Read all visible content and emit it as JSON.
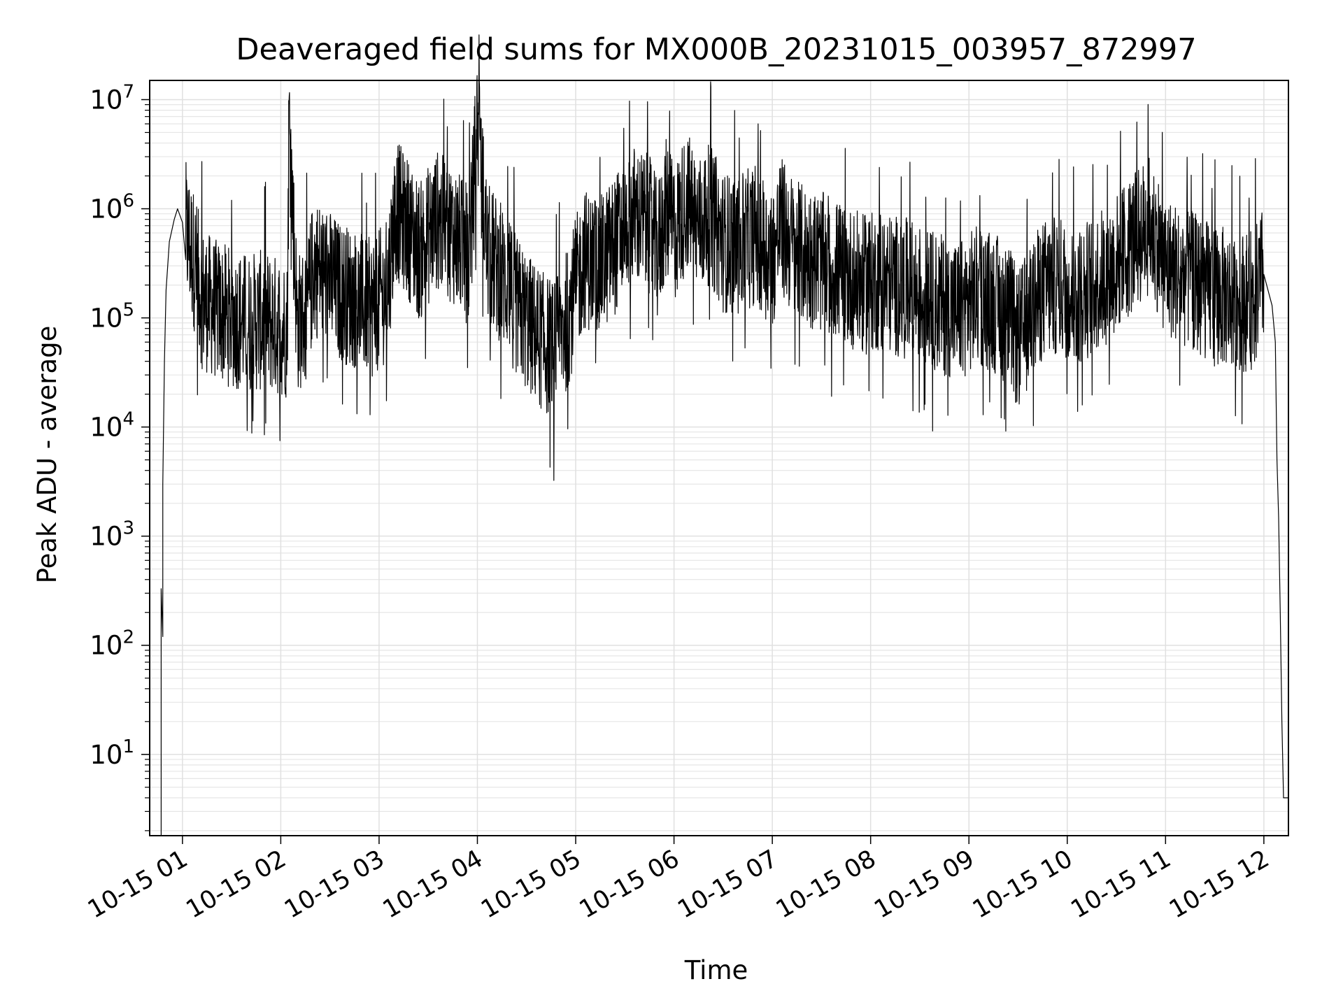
{
  "chart_data": {
    "type": "line",
    "title": "Deaveraged field sums for MX000B_20231015_003957_872997",
    "xlabel": "Time",
    "ylabel": "Peak ADU - average",
    "yscale": "log",
    "xlim": [
      "2023-10-15T00:40",
      "2023-10-15T12:15"
    ],
    "ylim": [
      1.8,
      15000000
    ],
    "grid": true,
    "line_color": "#000000",
    "x_ticks": [
      {
        "t": "2023-10-15T01:00",
        "label": "10-15 01"
      },
      {
        "t": "2023-10-15T02:00",
        "label": "10-15 02"
      },
      {
        "t": "2023-10-15T03:00",
        "label": "10-15 03"
      },
      {
        "t": "2023-10-15T04:00",
        "label": "10-15 04"
      },
      {
        "t": "2023-10-15T05:00",
        "label": "10-15 05"
      },
      {
        "t": "2023-10-15T06:00",
        "label": "10-15 06"
      },
      {
        "t": "2023-10-15T07:00",
        "label": "10-15 07"
      },
      {
        "t": "2023-10-15T08:00",
        "label": "10-15 08"
      },
      {
        "t": "2023-10-15T09:00",
        "label": "10-15 09"
      },
      {
        "t": "2023-10-15T10:00",
        "label": "10-15 10"
      },
      {
        "t": "2023-10-15T11:00",
        "label": "10-15 11"
      },
      {
        "t": "2023-10-15T12:00",
        "label": "10-15 12"
      }
    ],
    "y_ticks": [
      {
        "value": 10,
        "base": "10",
        "exp": "1"
      },
      {
        "value": 100,
        "base": "10",
        "exp": "2"
      },
      {
        "value": 1000,
        "base": "10",
        "exp": "3"
      },
      {
        "value": 10000,
        "base": "10",
        "exp": "4"
      },
      {
        "value": 100000,
        "base": "10",
        "exp": "5"
      },
      {
        "value": 1000000,
        "base": "10",
        "exp": "6"
      },
      {
        "value": 10000000,
        "base": "10",
        "exp": "7"
      }
    ],
    "series": [
      {
        "x": [
          "2023-10-15T00:47",
          "2023-10-15T00:47",
          "2023-10-15T00:48",
          "2023-10-15T00:48",
          "2023-10-15T00:49",
          "2023-10-15T00:50",
          "2023-10-15T00:52",
          "2023-10-15T00:55",
          "2023-10-15T00:57",
          "2023-10-15T01:00",
          "2023-10-15T01:04",
          "2023-10-15T01:08",
          "2023-10-15T01:12",
          "2023-10-15T01:20",
          "2023-10-15T01:30",
          "2023-10-15T01:40",
          "2023-10-15T01:50",
          "2023-10-15T01:58",
          "2023-10-15T02:04",
          "2023-10-15T02:05",
          "2023-10-15T02:10",
          "2023-10-15T02:16",
          "2023-10-15T02:20",
          "2023-10-15T02:27",
          "2023-10-15T02:35",
          "2023-10-15T02:45",
          "2023-10-15T02:55",
          "2023-10-15T03:05",
          "2023-10-15T03:10",
          "2023-10-15T03:17",
          "2023-10-15T03:25",
          "2023-10-15T03:35",
          "2023-10-15T03:45",
          "2023-10-15T03:55",
          "2023-10-15T04:00",
          "2023-10-15T04:06",
          "2023-10-15T04:15",
          "2023-10-15T04:25",
          "2023-10-15T04:33",
          "2023-10-15T04:40",
          "2023-10-15T04:47",
          "2023-10-15T04:55",
          "2023-10-15T05:05",
          "2023-10-15T05:15",
          "2023-10-15T05:25",
          "2023-10-15T05:35",
          "2023-10-15T05:45",
          "2023-10-15T05:50",
          "2023-10-15T05:55",
          "2023-10-15T06:00",
          "2023-10-15T06:08",
          "2023-10-15T06:15",
          "2023-10-15T06:22",
          "2023-10-15T06:30",
          "2023-10-15T06:40",
          "2023-10-15T06:50",
          "2023-10-15T07:00",
          "2023-10-15T07:05",
          "2023-10-15T07:15",
          "2023-10-15T07:25",
          "2023-10-15T07:35",
          "2023-10-15T07:45",
          "2023-10-15T07:55",
          "2023-10-15T08:05",
          "2023-10-15T08:15",
          "2023-10-15T08:25",
          "2023-10-15T08:35",
          "2023-10-15T08:45",
          "2023-10-15T08:55",
          "2023-10-15T09:05",
          "2023-10-15T09:15",
          "2023-10-15T09:25",
          "2023-10-15T09:30",
          "2023-10-15T09:35",
          "2023-10-15T09:45",
          "2023-10-15T09:55",
          "2023-10-15T10:05",
          "2023-10-15T10:15",
          "2023-10-15T10:25",
          "2023-10-15T10:35",
          "2023-10-15T10:45",
          "2023-10-15T10:50",
          "2023-10-15T10:55",
          "2023-10-15T11:00",
          "2023-10-15T11:10",
          "2023-10-15T11:20",
          "2023-10-15T11:30",
          "2023-10-15T11:40",
          "2023-10-15T11:50",
          "2023-10-15T11:55",
          "2023-10-15T12:00",
          "2023-10-15T12:05",
          "2023-10-15T12:07",
          "2023-10-15T12:08",
          "2023-10-15T12:09",
          "2023-10-15T12:10",
          "2023-10-15T12:11",
          "2023-10-15T12:12",
          "2023-10-15T12:13",
          "2023-10-15T12:14",
          "2023-10-15T12:15"
        ],
        "y": [
          1.8,
          330,
          120,
          3000,
          40000,
          180000,
          500000,
          800000,
          1000000,
          750000,
          500000,
          300000,
          150000,
          120000,
          100000,
          90000,
          95000,
          85000,
          80000,
          7500000,
          90000,
          110000,
          300000,
          250000,
          180000,
          150000,
          120000,
          180000,
          1000000,
          700000,
          400000,
          800000,
          600000,
          350000,
          6500000,
          400000,
          250000,
          120000,
          80000,
          60000,
          50000,
          100000,
          350000,
          300000,
          500000,
          900000,
          700000,
          400000,
          1000000,
          600000,
          1200000,
          700000,
          900000,
          500000,
          450000,
          600000,
          350000,
          700000,
          400000,
          350000,
          300000,
          250000,
          200000,
          220000,
          200000,
          180000,
          150000,
          130000,
          120000,
          160000,
          140000,
          100000,
          60000,
          90000,
          180000,
          200000,
          150000,
          200000,
          250000,
          400000,
          600000,
          700000,
          500000,
          300000,
          250000,
          200000,
          160000,
          150000,
          140000,
          160000,
          250000,
          130000,
          60000,
          5000,
          1500,
          200,
          20,
          4,
          4,
          4,
          4
        ]
      }
    ]
  }
}
